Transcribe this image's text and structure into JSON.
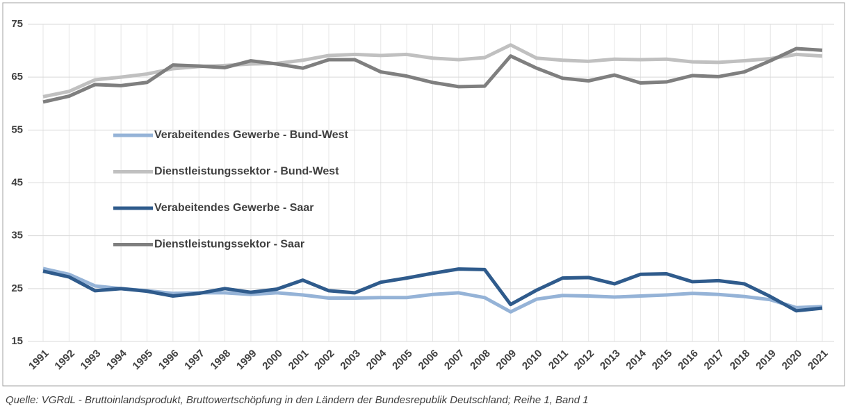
{
  "chart_data": {
    "type": "line",
    "categories": [
      "1991",
      "1992",
      "1993",
      "1994",
      "1995",
      "1996",
      "1997",
      "1998",
      "1999",
      "2000",
      "2001",
      "2002",
      "2003",
      "2004",
      "2005",
      "2006",
      "2007",
      "2008",
      "2009",
      "2010",
      "2011",
      "2012",
      "2013",
      "2014",
      "2015",
      "2016",
      "2017",
      "2018",
      "2019",
      "2020",
      "2021"
    ],
    "series": [
      {
        "name": "Verabeitendes Gewerbe - Bund-West",
        "color": "#95b3d7",
        "values": [
          28.8,
          27.7,
          25.5,
          25,
          24.6,
          24.1,
          24.2,
          24.2,
          23.9,
          24.2,
          23.8,
          23.2,
          23.2,
          23.3,
          23.3,
          23.9,
          24.2,
          23.3,
          20.6,
          23,
          23.7,
          23.6,
          23.4,
          23.6,
          23.8,
          24.1,
          23.9,
          23.5,
          22.9,
          21.4,
          21.6
        ]
      },
      {
        "name": "Dienstleistungssektor - Bund-West",
        "color": "#c0c0c0",
        "values": [
          61.3,
          62.3,
          64.5,
          65,
          65.6,
          66.6,
          67,
          67.2,
          67.5,
          67.6,
          68.2,
          69.1,
          69.3,
          69.1,
          69.3,
          68.6,
          68.3,
          68.7,
          71.1,
          68.6,
          68.2,
          68,
          68.4,
          68.3,
          68.4,
          67.9,
          67.8,
          68.1,
          68.5,
          69.3,
          69
        ]
      },
      {
        "name": "Verabeitendes Gewerbe - Saar",
        "color": "#2f5b8c",
        "values": [
          28.3,
          27.2,
          24.6,
          25,
          24.5,
          23.6,
          24.1,
          25,
          24.3,
          24.9,
          26.6,
          24.6,
          24.2,
          26.2,
          27,
          27.9,
          28.7,
          28.6,
          22,
          24.7,
          27,
          27.1,
          25.9,
          27.7,
          27.8,
          26.3,
          26.5,
          25.9,
          23.5,
          20.8,
          21.3
        ]
      },
      {
        "name": "Dienstleistungssektor - Saar",
        "color": "#7f7f7f",
        "values": [
          60.3,
          61.4,
          63.6,
          63.4,
          64,
          67.3,
          67.1,
          66.8,
          68.1,
          67.5,
          66.7,
          68.3,
          68.3,
          66,
          65.2,
          64,
          63.2,
          63.3,
          69,
          66.7,
          64.8,
          64.3,
          65.4,
          63.9,
          64.1,
          65.3,
          65.1,
          66,
          68.1,
          70.4,
          70.1
        ]
      }
    ],
    "ylim": [
      15,
      75
    ],
    "yticks": [
      15,
      25,
      35,
      45,
      55,
      65,
      75
    ],
    "grid": true,
    "source": "Quelle: VGRdL - Bruttoinlandsprodukt, Bruttowertschöpfung in den Ländern der Bundesrepublik Deutschland; Reihe 1, Band 1"
  }
}
